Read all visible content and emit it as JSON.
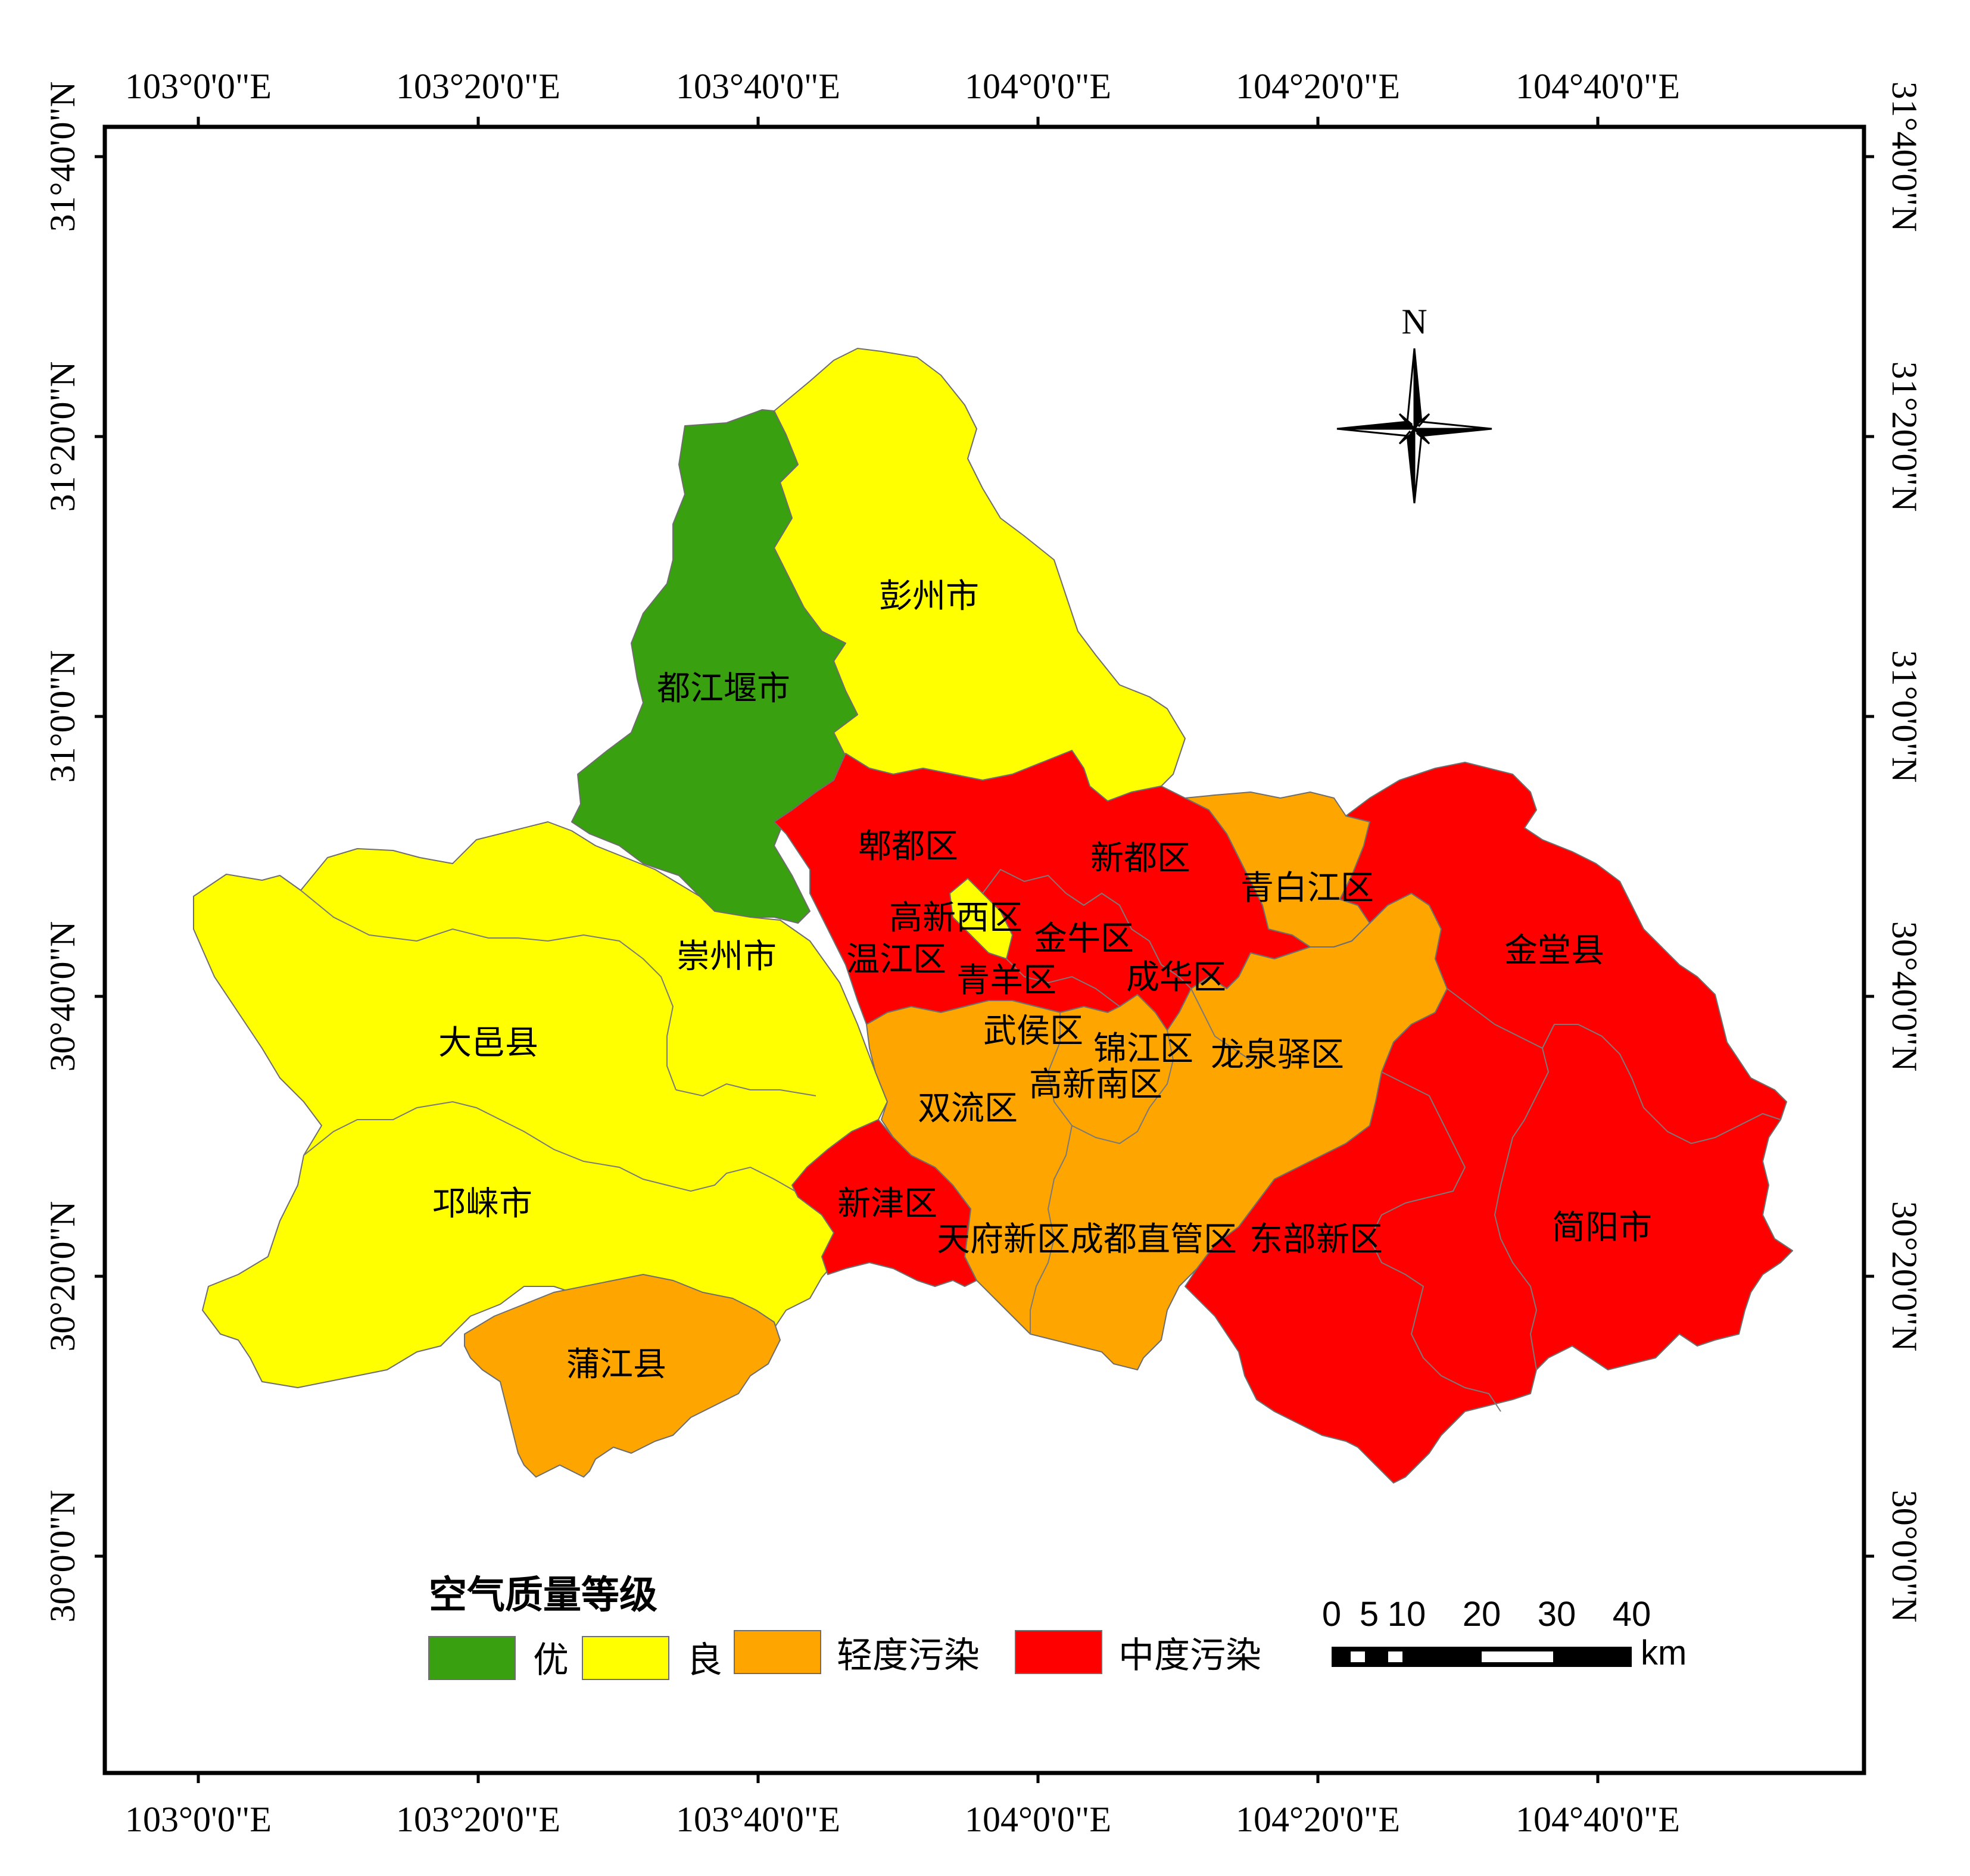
{
  "axes": {
    "top_lon_labels": [
      "103°0'0\"E",
      "103°20'0\"E",
      "103°40'0\"E",
      "104°0'0\"E",
      "104°20'0\"E",
      "104°40'0\"E"
    ],
    "bottom_lon_labels": [
      "103°0'0\"E",
      "103°20'0\"E",
      "103°40'0\"E",
      "104°0'0\"E",
      "104°20'0\"E",
      "104°40'0\"E"
    ],
    "left_lat_labels": [
      "31°40'0\"N",
      "31°20'0\"N",
      "31°0'0\"N",
      "30°40'0\"N",
      "30°20'0\"N",
      "30°0'0\"N"
    ],
    "right_lat_labels": [
      "31°40'0\"N",
      "31°20'0\"N",
      "31°0'0\"N",
      "30°40'0\"N",
      "30°20'0\"N",
      "30°0'0\"N"
    ]
  },
  "colors": {
    "excellent": "#39a00f",
    "good": "#ffff00",
    "light": "#ffa500",
    "moderate": "#ff0000"
  },
  "districts": {
    "dujiangyan": {
      "name": "都江堰市",
      "grade": "excellent"
    },
    "pengzhou": {
      "name": "彭州市",
      "grade": "good"
    },
    "chongzhou": {
      "name": "崇州市",
      "grade": "good"
    },
    "dayi": {
      "name": "大邑县",
      "grade": "good"
    },
    "qionglai": {
      "name": "邛崃市",
      "grade": "good"
    },
    "gaoxinxi": {
      "name": "高新西区",
      "grade": "good"
    },
    "pujiang": {
      "name": "蒲江县",
      "grade": "light"
    },
    "qingbaijiang": {
      "name": "青白江区",
      "grade": "light"
    },
    "wuhou": {
      "name": "武侯区",
      "grade": "light"
    },
    "jinjiang": {
      "name": "锦江区",
      "grade": "light"
    },
    "longquanyi": {
      "name": "龙泉驿区",
      "grade": "light"
    },
    "shuangliu": {
      "name": "双流区",
      "grade": "light"
    },
    "gaoxinnan": {
      "name": "高新南区",
      "grade": "light"
    },
    "tianfu": {
      "name": "天府新区成都直管区",
      "grade": "light"
    },
    "pidu": {
      "name": "郫都区",
      "grade": "moderate"
    },
    "xindu": {
      "name": "新都区",
      "grade": "moderate"
    },
    "jinniu": {
      "name": "金牛区",
      "grade": "moderate"
    },
    "wenjiang": {
      "name": "温江区",
      "grade": "moderate"
    },
    "qingyang": {
      "name": "青羊区",
      "grade": "moderate"
    },
    "chenghua": {
      "name": "成华区",
      "grade": "moderate"
    },
    "jintang": {
      "name": "金堂县",
      "grade": "moderate"
    },
    "xinjin": {
      "name": "新津区",
      "grade": "moderate"
    },
    "dongbu": {
      "name": "东部新区",
      "grade": "moderate"
    },
    "jianyang": {
      "name": "简阳市",
      "grade": "moderate"
    }
  },
  "legend": {
    "title": "空气质量等级",
    "items": [
      {
        "label": "优",
        "grade": "excellent"
      },
      {
        "label": "良",
        "grade": "good"
      },
      {
        "label": "轻度污染",
        "grade": "light"
      },
      {
        "label": "中度污染",
        "grade": "moderate"
      }
    ]
  },
  "north_arrow": {
    "label": "N"
  },
  "scale_bar": {
    "ticks": [
      "0",
      "5",
      "10",
      "20",
      "30",
      "40"
    ],
    "unit": "km"
  }
}
